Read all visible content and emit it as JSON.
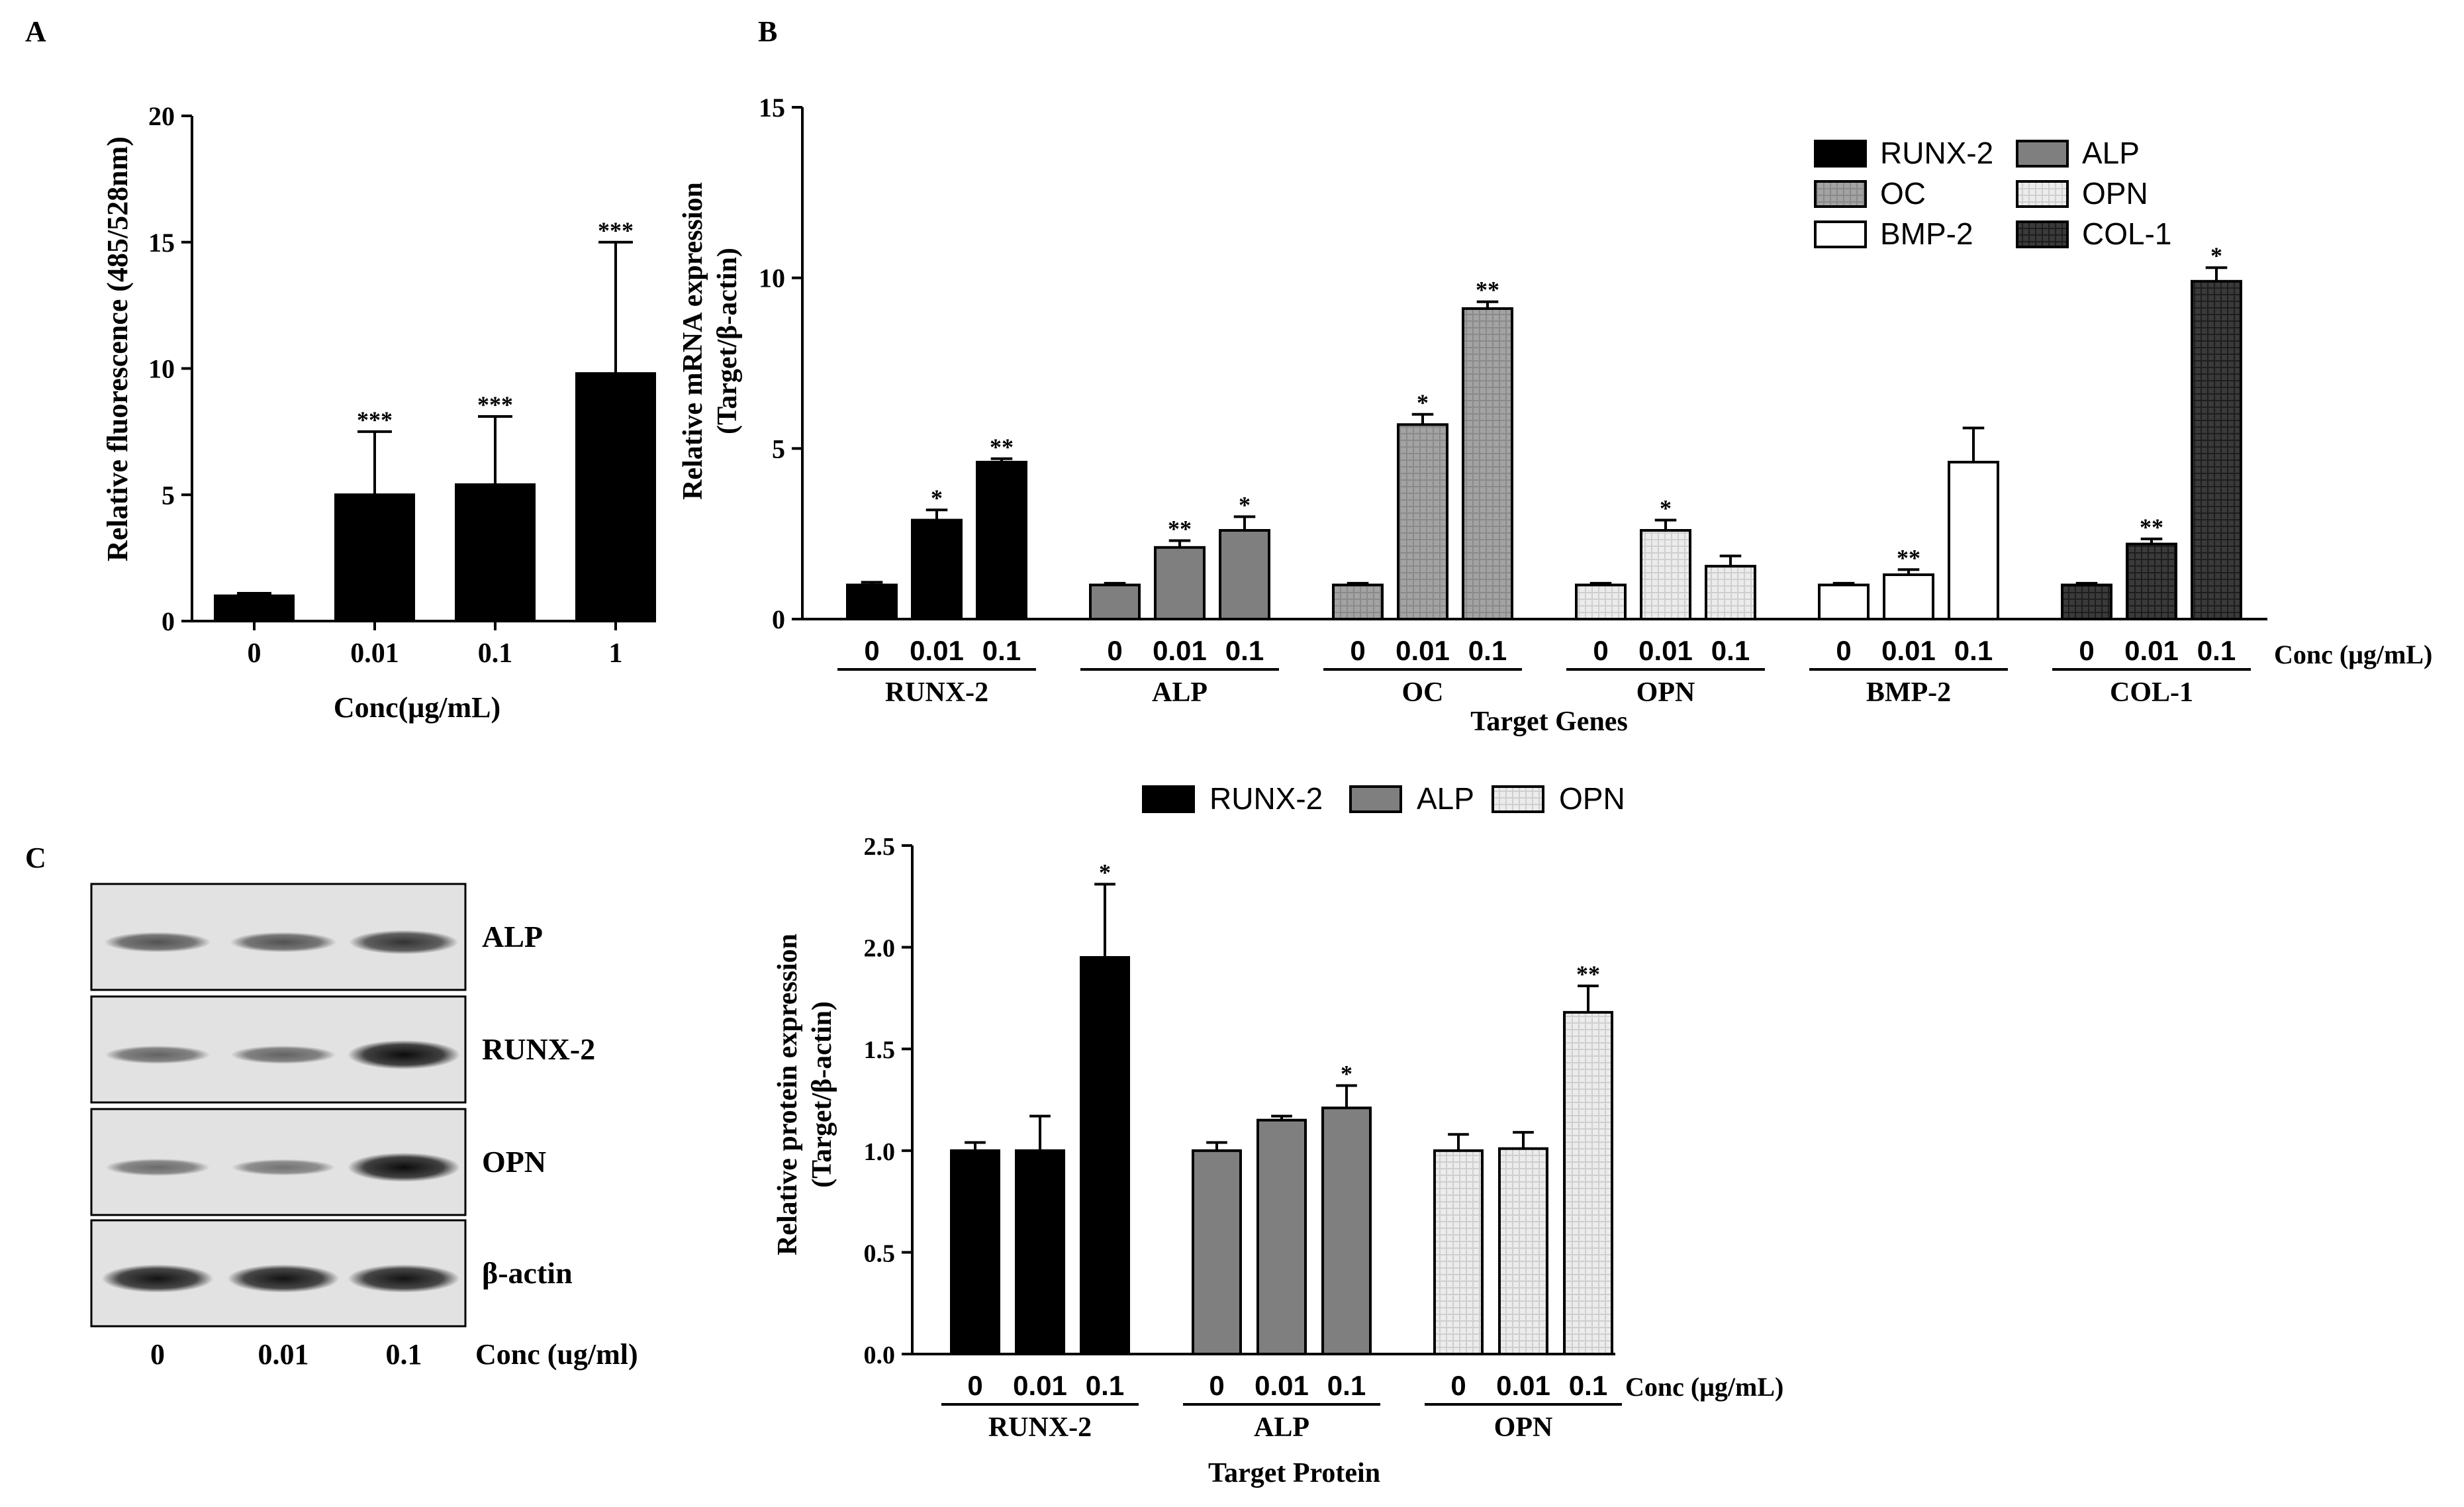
{
  "colors": {
    "RUNX-2": "#000000",
    "ALP": "#7f7f7f",
    "OC": "#a6a6a6",
    "OPN": "#ebebeb",
    "BMP-2": "#ffffff",
    "COL-1": "#3a3a3a",
    "WB_OPN": "#ffffff"
  },
  "chart_data": [
    {
      "id": "A",
      "panel_label": "A",
      "type": "bar",
      "categories": [
        "0",
        "0.01",
        "0.1",
        "1"
      ],
      "values": [
        1.0,
        5.0,
        5.4,
        9.8
      ],
      "errors": [
        0.1,
        2.5,
        2.7,
        5.2
      ],
      "significance": [
        "",
        "***",
        "***",
        "***"
      ],
      "ylim": [
        0,
        20
      ],
      "yticks": [
        "0",
        "5",
        "10",
        "15",
        "20"
      ],
      "ylabel": "Relative fluorescence (485/528nm)",
      "xlabel": "Conc(μg/mL)"
    },
    {
      "id": "B",
      "panel_label": "B",
      "type": "bar",
      "groups": [
        "RUNX-2",
        "ALP",
        "OC",
        "OPN",
        "BMP-2",
        "COL-1"
      ],
      "categories": [
        "0",
        "0.01",
        "0.1"
      ],
      "series": [
        {
          "name": "RUNX-2",
          "values": [
            1.0,
            2.9,
            4.6
          ],
          "errors": [
            0.08,
            0.3,
            0.1
          ],
          "significance": [
            "",
            "*",
            "**"
          ]
        },
        {
          "name": "ALP",
          "values": [
            1.0,
            2.1,
            2.6
          ],
          "errors": [
            0.05,
            0.2,
            0.4
          ],
          "significance": [
            "",
            "**",
            "*"
          ]
        },
        {
          "name": "OC",
          "values": [
            1.0,
            5.7,
            9.1
          ],
          "errors": [
            0.05,
            0.3,
            0.2
          ],
          "significance": [
            "",
            "*",
            "**"
          ]
        },
        {
          "name": "OPN",
          "values": [
            1.0,
            2.6,
            1.55
          ],
          "errors": [
            0.05,
            0.3,
            0.3
          ],
          "significance": [
            "",
            "*",
            ""
          ]
        },
        {
          "name": "BMP-2",
          "values": [
            1.0,
            1.3,
            4.6
          ],
          "errors": [
            0.05,
            0.15,
            1.0
          ],
          "significance": [
            "",
            "**",
            ""
          ]
        },
        {
          "name": "COL-1",
          "values": [
            1.0,
            2.2,
            9.9
          ],
          "errors": [
            0.05,
            0.15,
            0.4
          ],
          "significance": [
            "",
            "**",
            "*"
          ]
        }
      ],
      "ylim": [
        0,
        15
      ],
      "yticks": [
        "0",
        "5",
        "10",
        "15"
      ],
      "ylabel_line1": "Relative mRNA expression",
      "ylabel_line2": "(Target/β-actin)",
      "xlabel": "Target Genes",
      "conc_label": "Conc (μg/mL)",
      "legend": [
        "RUNX-2",
        "ALP",
        "OC",
        "OPN",
        "BMP-2",
        "COL-1"
      ]
    },
    {
      "id": "C",
      "panel_label": "C",
      "type": "bar",
      "groups": [
        "RUNX-2",
        "ALP",
        "OPN"
      ],
      "categories": [
        "0",
        "0.01",
        "0.1"
      ],
      "series": [
        {
          "name": "RUNX-2",
          "values": [
            1.0,
            1.0,
            1.95
          ],
          "errors": [
            0.04,
            0.17,
            0.36
          ],
          "significance": [
            "",
            "",
            "*"
          ]
        },
        {
          "name": "ALP",
          "values": [
            1.0,
            1.15,
            1.21
          ],
          "errors": [
            0.04,
            0.02,
            0.11
          ],
          "significance": [
            "",
            "",
            "*"
          ]
        },
        {
          "name": "OPN",
          "values": [
            1.0,
            1.01,
            1.68
          ],
          "errors": [
            0.08,
            0.08,
            0.13
          ],
          "significance": [
            "",
            "",
            "**"
          ]
        }
      ],
      "ylim": [
        0,
        2.5
      ],
      "yticks": [
        "0.0",
        "0.5",
        "1.0",
        "1.5",
        "2.0",
        "2.5"
      ],
      "ylabel_line1": "Relative protein expression",
      "ylabel_line2": "(Target/β-actin)",
      "xlabel": "Target Protein",
      "conc_label": "Conc (μg/mL)",
      "legend": [
        "RUNX-2",
        "ALP",
        "OPN"
      ]
    }
  ],
  "western_blot": {
    "rows": [
      "ALP",
      "RUNX-2",
      "OPN",
      "β-actin"
    ],
    "lanes": [
      "0",
      "0.01",
      "0.1"
    ],
    "intensity": [
      [
        0.55,
        0.55,
        0.75
      ],
      [
        0.45,
        0.45,
        1.0
      ],
      [
        0.4,
        0.35,
        1.0
      ],
      [
        0.95,
        0.95,
        0.95
      ]
    ],
    "conc_label": "Conc (ug/ml)"
  }
}
